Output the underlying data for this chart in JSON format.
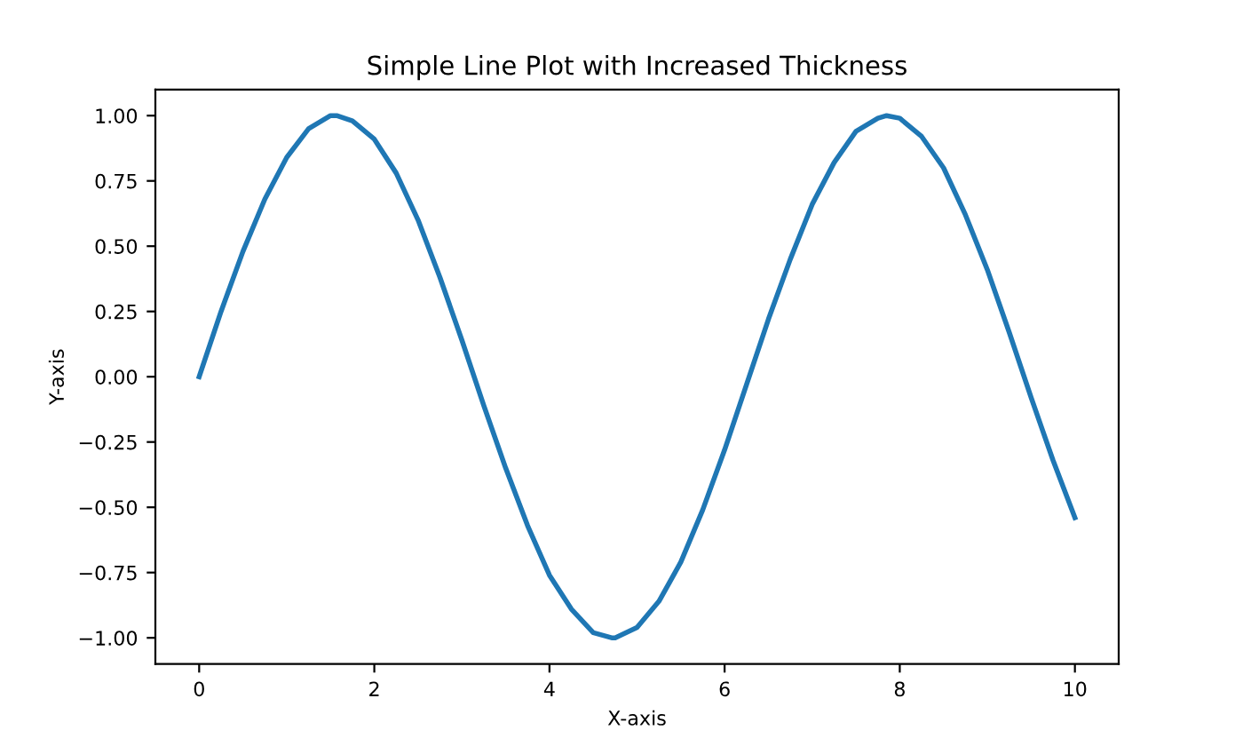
{
  "chart_data": {
    "type": "line",
    "title": "Simple Line Plot with Increased Thickness",
    "xlabel": "X-axis",
    "ylabel": "Y-axis",
    "series": [
      {
        "color": "#1f77b4",
        "x": [
          0,
          0.25,
          0.5,
          0.75,
          1,
          1.25,
          1.5,
          1.57,
          1.75,
          2,
          2.25,
          2.5,
          2.75,
          3,
          3.25,
          3.5,
          3.75,
          4,
          4.25,
          4.5,
          4.71,
          4.75,
          5,
          5.25,
          5.5,
          5.75,
          6,
          6.25,
          6.5,
          6.75,
          7,
          7.25,
          7.5,
          7.75,
          7.85,
          8,
          8.25,
          8.5,
          8.75,
          9,
          9.25,
          9.5,
          9.75,
          10
        ],
        "values": [
          0,
          0.25,
          0.48,
          0.68,
          0.84,
          0.95,
          1.0,
          1.0,
          0.98,
          0.91,
          0.78,
          0.6,
          0.38,
          0.14,
          -0.11,
          -0.35,
          -0.57,
          -0.76,
          -0.89,
          -0.98,
          -1.0,
          -1.0,
          -0.96,
          -0.86,
          -0.71,
          -0.51,
          -0.28,
          -0.03,
          0.22,
          0.45,
          0.66,
          0.82,
          0.94,
          0.99,
          1.0,
          0.99,
          0.92,
          0.8,
          0.62,
          0.41,
          0.17,
          -0.08,
          -0.32,
          -0.54
        ]
      }
    ],
    "xlim": [
      -0.5,
      10.5
    ],
    "ylim": [
      -1.1,
      1.1
    ],
    "xticks": [
      0,
      2,
      4,
      6,
      8,
      10
    ],
    "yticks": [
      {
        "value": -1,
        "label": "−1.00"
      },
      {
        "value": -0.75,
        "label": "−0.75"
      },
      {
        "value": -0.5,
        "label": "−0.50"
      },
      {
        "value": -0.25,
        "label": "−0.25"
      },
      {
        "value": 0,
        "label": "0.00"
      },
      {
        "value": 0.25,
        "label": "0.25"
      },
      {
        "value": 0.5,
        "label": "0.50"
      },
      {
        "value": 0.75,
        "label": "0.75"
      },
      {
        "value": 1,
        "label": "1.00"
      }
    ],
    "grid": false,
    "line_style": "solid",
    "marker": "none"
  }
}
